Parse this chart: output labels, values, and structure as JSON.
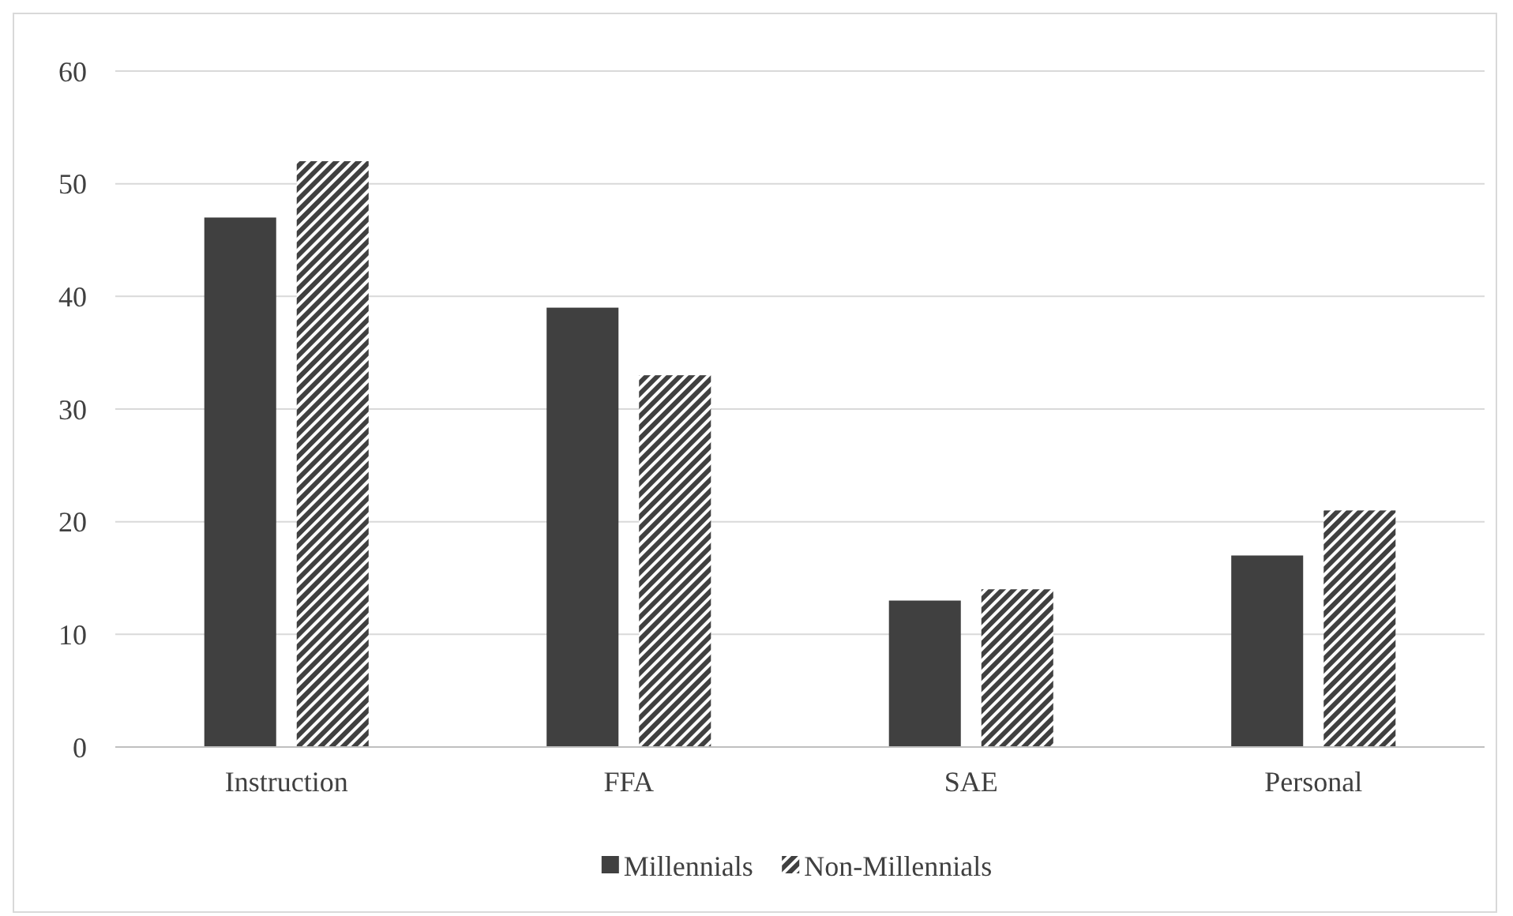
{
  "chart_data": {
    "type": "bar",
    "categories": [
      "Instruction",
      "FFA",
      "SAE",
      "Personal"
    ],
    "series": [
      {
        "name": "Millennials",
        "color": "#404040",
        "values": [
          47,
          39,
          13,
          17
        ]
      },
      {
        "name": "Non-Millennials",
        "color": "#404040",
        "values": [
          52,
          33,
          14,
          21
        ]
      }
    ],
    "ylim": [
      0,
      60
    ],
    "yticks": [
      0,
      10,
      20,
      30,
      40,
      50,
      60
    ],
    "grid": "y",
    "legend": "bottom"
  }
}
